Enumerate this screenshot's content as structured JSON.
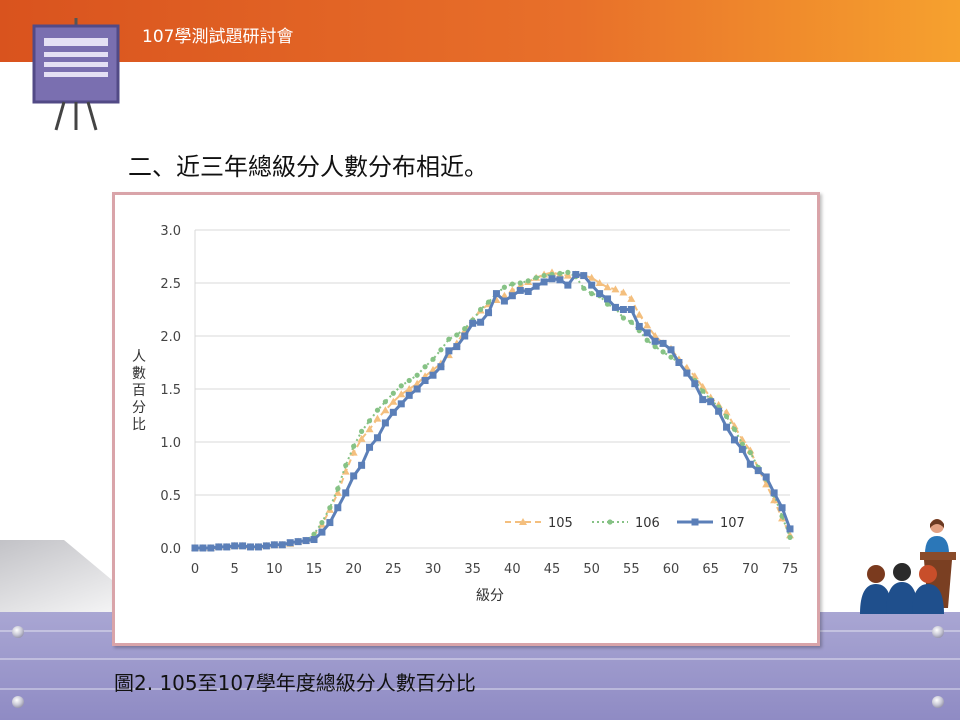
{
  "header": {
    "title": "107學測試題研討會"
  },
  "slide": {
    "heading": "二、近三年總級分人數分布相近。",
    "caption": "圖2. 105至107學年度總級分人數百分比"
  },
  "icons": {
    "board": "presentation-board-icon",
    "speaker": "speaker-podium-icon",
    "audience": "audience-icon"
  },
  "colors": {
    "header_start": "#d9531e",
    "header_end": "#f6a12e",
    "floor": "#9d99cc"
  },
  "chart_data": {
    "type": "line",
    "title": "",
    "xlabel": "級分",
    "ylabel": "人數百分比",
    "xlim": [
      0,
      75
    ],
    "ylim": [
      0,
      3.0
    ],
    "xticks": [
      0,
      5,
      10,
      15,
      20,
      25,
      30,
      35,
      40,
      45,
      50,
      55,
      60,
      65,
      70,
      75
    ],
    "yticks": [
      0.0,
      0.5,
      1.0,
      1.5,
      2.0,
      2.5,
      3.0
    ],
    "ytick_labels": [
      "0.0",
      "0.5",
      "1.0",
      "1.5",
      "2.0",
      "2.5",
      "3.0"
    ],
    "grid": "horizontal",
    "legend_position": "bottom-right",
    "x": [
      0,
      1,
      2,
      3,
      4,
      5,
      6,
      7,
      8,
      9,
      10,
      11,
      12,
      13,
      14,
      15,
      16,
      17,
      18,
      19,
      20,
      21,
      22,
      23,
      24,
      25,
      26,
      27,
      28,
      29,
      30,
      31,
      32,
      33,
      34,
      35,
      36,
      37,
      38,
      39,
      40,
      41,
      42,
      43,
      44,
      45,
      46,
      47,
      48,
      49,
      50,
      51,
      52,
      53,
      54,
      55,
      56,
      57,
      58,
      59,
      60,
      61,
      62,
      63,
      64,
      65,
      66,
      67,
      68,
      69,
      70,
      71,
      72,
      73,
      74,
      75
    ],
    "series": [
      {
        "name": "105",
        "color": "#f4bf7e",
        "style": "dashed",
        "marker": "triangle",
        "values": [
          0,
          0,
          0,
          0.01,
          0.01,
          0.02,
          0.02,
          0.01,
          0.01,
          0.02,
          0.03,
          0.03,
          0.04,
          0.06,
          0.07,
          0.12,
          0.22,
          0.36,
          0.52,
          0.72,
          0.9,
          1.03,
          1.12,
          1.22,
          1.3,
          1.38,
          1.45,
          1.5,
          1.55,
          1.62,
          1.68,
          1.74,
          1.82,
          1.93,
          2.05,
          2.15,
          2.24,
          2.3,
          2.34,
          2.38,
          2.43,
          2.47,
          2.51,
          2.55,
          2.58,
          2.6,
          2.58,
          2.57,
          2.58,
          2.57,
          2.55,
          2.5,
          2.46,
          2.44,
          2.41,
          2.35,
          2.2,
          2.1,
          2.0,
          1.93,
          1.88,
          1.78,
          1.7,
          1.62,
          1.52,
          1.42,
          1.35,
          1.28,
          1.15,
          1.02,
          0.92,
          0.75,
          0.6,
          0.45,
          0.28,
          0.12
        ]
      },
      {
        "name": "106",
        "color": "#86c285",
        "style": "dotted",
        "marker": "circle",
        "values": [
          0,
          0,
          0,
          0.01,
          0.01,
          0.02,
          0.02,
          0.01,
          0.01,
          0.02,
          0.03,
          0.03,
          0.04,
          0.06,
          0.07,
          0.13,
          0.24,
          0.38,
          0.56,
          0.78,
          0.96,
          1.1,
          1.2,
          1.3,
          1.38,
          1.46,
          1.53,
          1.58,
          1.63,
          1.71,
          1.78,
          1.87,
          1.97,
          2.01,
          2.07,
          2.15,
          2.25,
          2.32,
          2.4,
          2.46,
          2.49,
          2.5,
          2.52,
          2.55,
          2.57,
          2.58,
          2.59,
          2.6,
          2.56,
          2.45,
          2.4,
          2.38,
          2.3,
          2.26,
          2.17,
          2.13,
          2.05,
          1.96,
          1.9,
          1.85,
          1.8,
          1.75,
          1.66,
          1.58,
          1.48,
          1.4,
          1.33,
          1.24,
          1.12,
          0.98,
          0.9,
          0.76,
          0.65,
          0.5,
          0.3,
          0.1
        ]
      },
      {
        "name": "107",
        "color": "#5b7fb8",
        "style": "solid",
        "marker": "square",
        "values": [
          0,
          0,
          0,
          0.01,
          0.01,
          0.02,
          0.02,
          0.01,
          0.01,
          0.02,
          0.03,
          0.03,
          0.05,
          0.06,
          0.07,
          0.08,
          0.15,
          0.24,
          0.38,
          0.52,
          0.68,
          0.78,
          0.95,
          1.04,
          1.18,
          1.28,
          1.36,
          1.44,
          1.5,
          1.58,
          1.63,
          1.71,
          1.86,
          1.9,
          2.0,
          2.12,
          2.13,
          2.22,
          2.4,
          2.33,
          2.38,
          2.43,
          2.42,
          2.47,
          2.51,
          2.54,
          2.53,
          2.48,
          2.58,
          2.57,
          2.48,
          2.4,
          2.35,
          2.27,
          2.25,
          2.25,
          2.09,
          2.03,
          1.95,
          1.93,
          1.87,
          1.75,
          1.65,
          1.55,
          1.4,
          1.38,
          1.29,
          1.14,
          1.02,
          0.93,
          0.79,
          0.73,
          0.67,
          0.52,
          0.38,
          0.18
        ]
      }
    ]
  }
}
